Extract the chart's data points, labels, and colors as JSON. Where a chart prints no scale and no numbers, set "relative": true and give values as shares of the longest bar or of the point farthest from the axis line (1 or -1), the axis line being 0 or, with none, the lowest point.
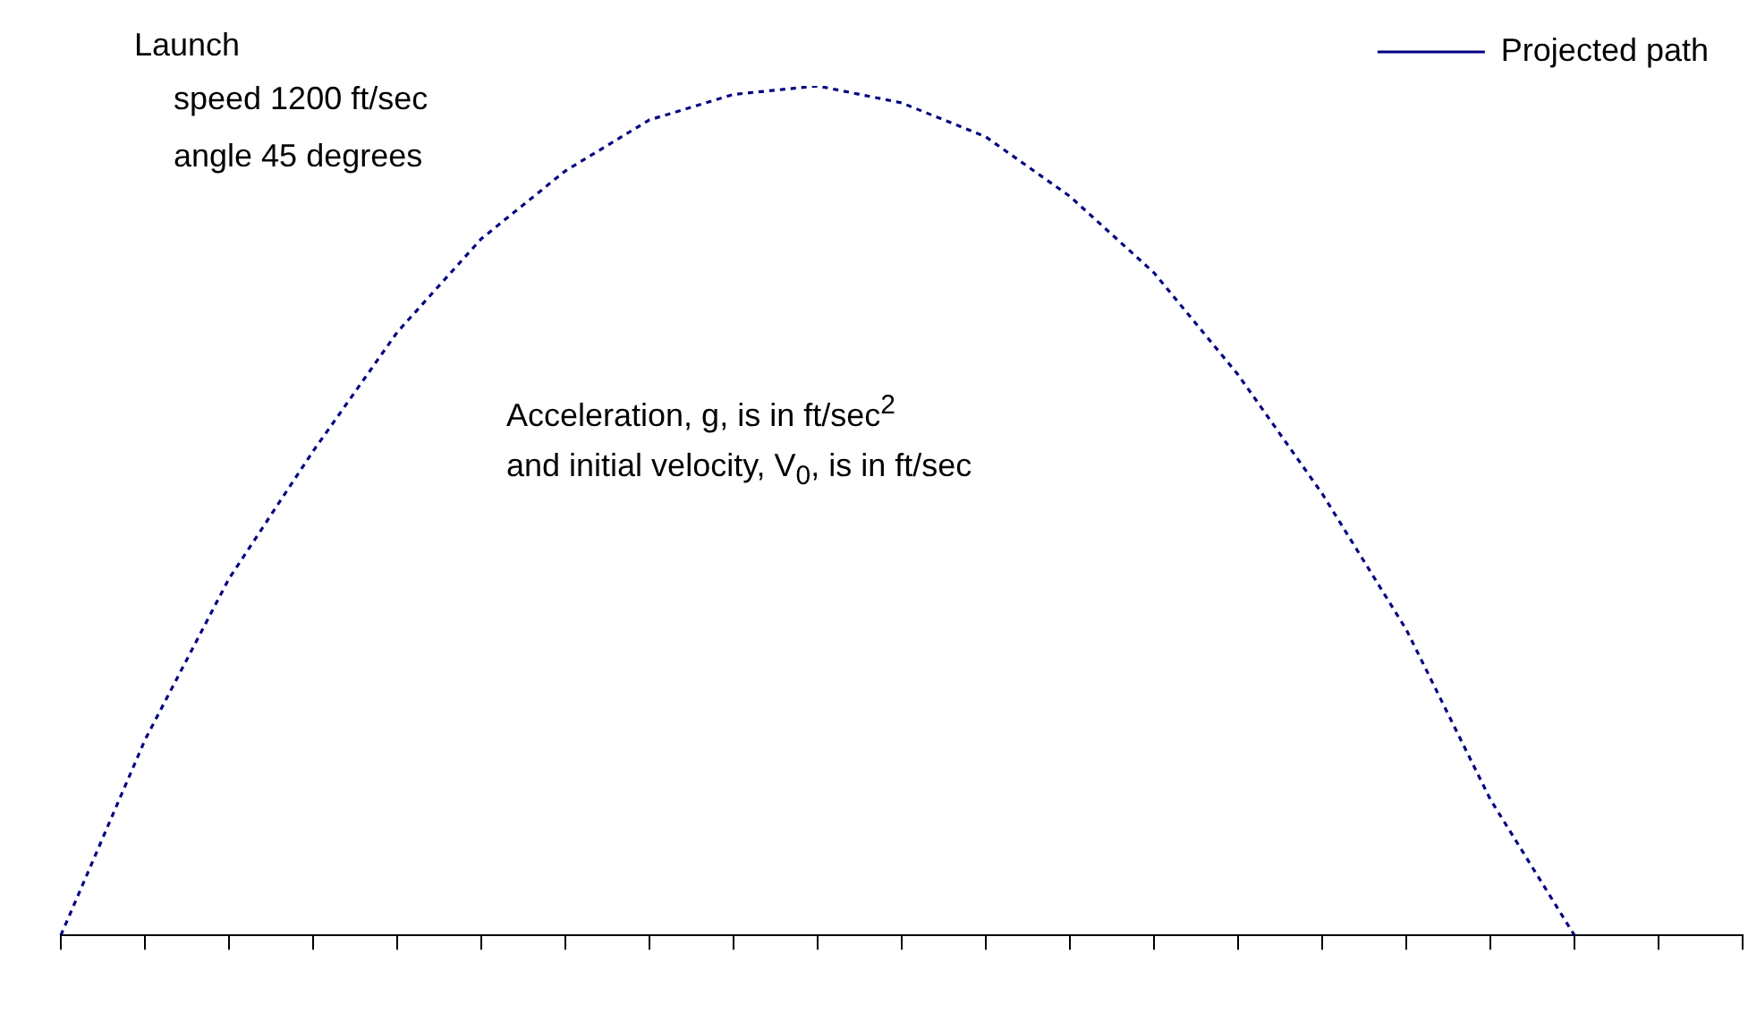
{
  "chart_data": {
    "type": "line",
    "relative": true,
    "categories": [
      null,
      null,
      null,
      null,
      null,
      null,
      null,
      null,
      null,
      null,
      null,
      null,
      null,
      null,
      null,
      null,
      null,
      null,
      null,
      null,
      null
    ],
    "series": [
      {
        "name": "Projected path",
        "color": "#000080",
        "values": [
          0,
          0.23,
          0.42,
          0.57,
          0.71,
          0.82,
          0.9,
          0.96,
          0.99,
          1,
          0.98,
          0.94,
          0.87,
          0.78,
          0.66,
          0.52,
          0.36,
          0.16,
          0,
          null,
          null
        ]
      }
    ],
    "line_style": "dotted",
    "marker": "none",
    "legend": "top right",
    "grid": false,
    "annotations": [
      "Launch",
      "speed 1200 ft/sec",
      "angle 45 degrees",
      "Acceleration, g, is in ft/sec$^{2}$",
      "and initial velocity, V$_{0}$, is in ft/sec"
    ]
  }
}
